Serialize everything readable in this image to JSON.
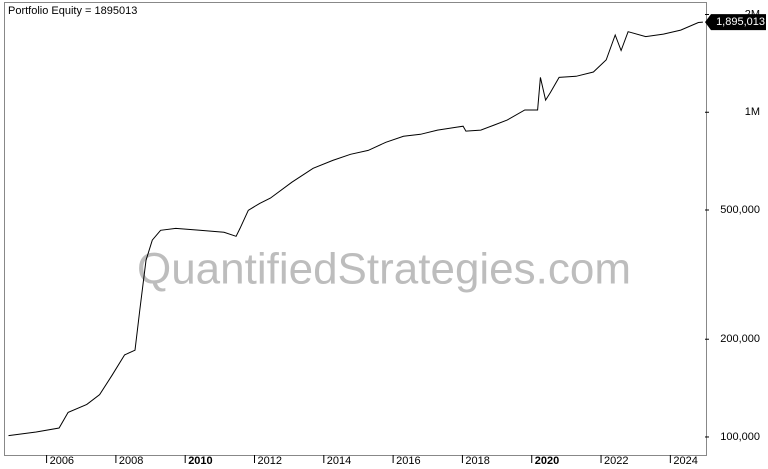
{
  "chart_data": {
    "type": "line",
    "title": "Portfolio Equity = 1895013",
    "watermark": "QuantifiedStrategies.com",
    "x": [
      2004.9,
      2005.7,
      2006.36,
      2006.62,
      2007.16,
      2007.53,
      2007.89,
      2008.25,
      2008.55,
      2008.69,
      2008.87,
      2009.05,
      2009.29,
      2009.73,
      2010.42,
      2011.12,
      2011.47,
      2011.58,
      2011.82,
      2012.15,
      2012.46,
      2013.08,
      2013.69,
      2014.26,
      2014.77,
      2015.28,
      2015.79,
      2016.3,
      2016.79,
      2017.28,
      2018.02,
      2018.1,
      2018.53,
      2018.91,
      2019.29,
      2019.8,
      2020.17,
      2020.25,
      2020.4,
      2020.54,
      2020.79,
      2021.28,
      2021.78,
      2022.15,
      2022.41,
      2022.58,
      2022.78,
      2023.29,
      2023.8,
      2024.3,
      2024.81,
      2024.94
    ],
    "series": [
      {
        "name": "Portfolio Equity",
        "color": "#000000",
        "values": [
          101000,
          103600,
          106600,
          119000,
          126000,
          135000,
          155000,
          179000,
          185000,
          246000,
          350000,
          404000,
          433000,
          439000,
          433000,
          427000,
          415000,
          439000,
          499000,
          524000,
          544000,
          609000,
          672000,
          711000,
          742000,
          763000,
          808000,
          843000,
          855000,
          881000,
          906000,
          875000,
          881000,
          913000,
          946000,
          1016000,
          1016000,
          1280000,
          1090000,
          1150000,
          1280000,
          1290000,
          1330000,
          1450000,
          1730000,
          1550000,
          1770000,
          1710000,
          1740000,
          1790000,
          1890000,
          1895013
        ],
        "last_value_label": "1,895,013"
      }
    ],
    "xlim": [
      2004.8,
      2025
    ],
    "xticks": [
      2006,
      2008,
      2010,
      2012,
      2014,
      2016,
      2018,
      2020,
      2022,
      2024
    ],
    "bold_xticks": [
      2010,
      2020
    ],
    "ylim": [
      88000,
      2170000
    ],
    "log_y": true,
    "yticks": [
      {
        "value": 100000,
        "label": "100,000"
      },
      {
        "value": 200000,
        "label": "200,000"
      },
      {
        "value": 500000,
        "label": "500,000"
      },
      {
        "value": 1000000,
        "label": "1M"
      },
      {
        "value": 2000000,
        "label": "2M"
      }
    ]
  }
}
